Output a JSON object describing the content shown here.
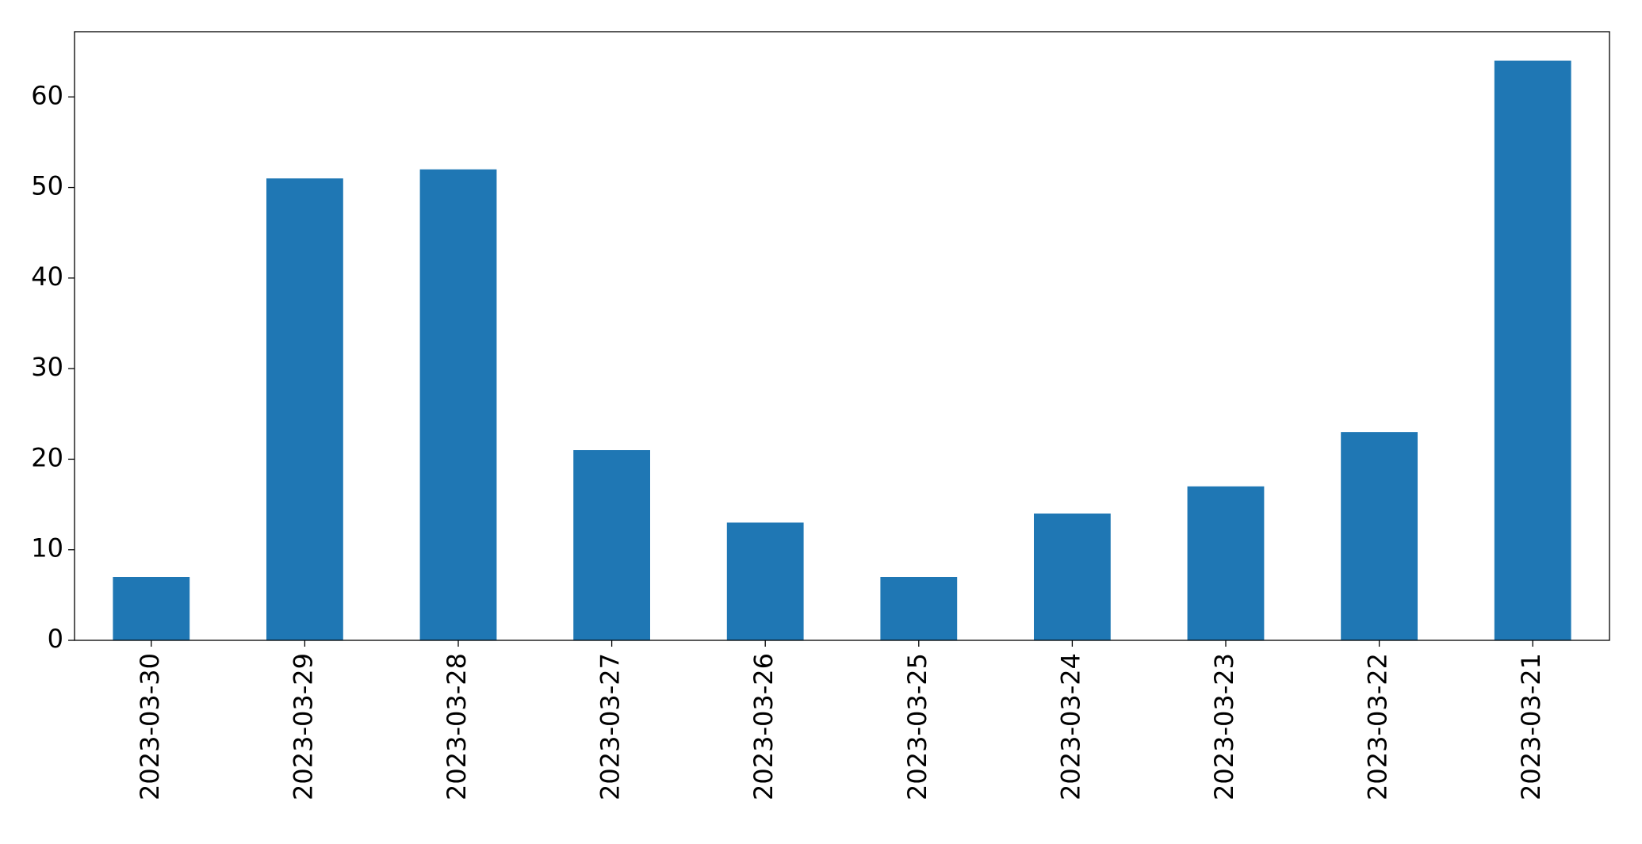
{
  "chart_data": {
    "type": "bar",
    "categories": [
      "2023-03-30",
      "2023-03-29",
      "2023-03-28",
      "2023-03-27",
      "2023-03-26",
      "2023-03-25",
      "2023-03-24",
      "2023-03-23",
      "2023-03-22",
      "2023-03-21"
    ],
    "values": [
      7,
      51,
      52,
      21,
      13,
      7,
      14,
      17,
      23,
      64
    ],
    "color": "#1f77b4",
    "ylim": [
      0,
      67.2
    ],
    "yticks": [
      0,
      10,
      20,
      30,
      40,
      50,
      60
    ],
    "grid": false
  }
}
